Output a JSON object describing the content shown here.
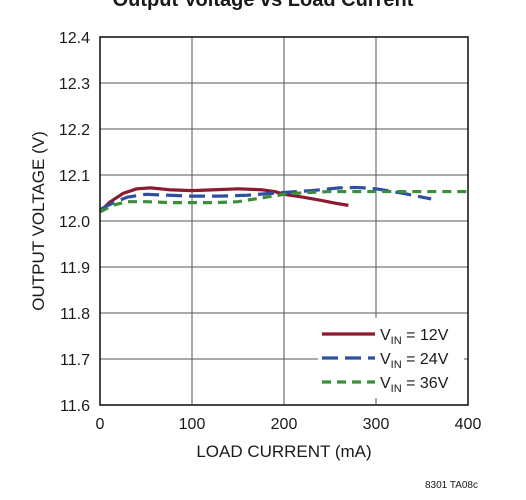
{
  "chart_data": {
    "type": "line",
    "title": "Output Voltage vs Load Current",
    "xlabel": "LOAD CURRENT (mA)",
    "ylabel": "OUTPUT VOLTAGE (V)",
    "xlim": [
      0,
      400
    ],
    "ylim": [
      11.6,
      12.4
    ],
    "x_ticks": [
      "0",
      "100",
      "200",
      "300",
      "400"
    ],
    "y_ticks": [
      "11.6",
      "11.7",
      "11.8",
      "11.9",
      "12.0",
      "12.1",
      "12.2",
      "12.3",
      "12.4"
    ],
    "grid": true,
    "legend_position": "bottom-right",
    "series": [
      {
        "name_main": "V",
        "name_sub": "IN",
        "name_rest": " = 12V",
        "color": "#8b1a2e",
        "style": "solid",
        "x": [
          0,
          10,
          25,
          40,
          55,
          75,
          100,
          125,
          150,
          175,
          190,
          200,
          220,
          240,
          255,
          270
        ],
        "y": [
          12.02,
          12.04,
          12.06,
          12.07,
          12.072,
          12.068,
          12.066,
          12.068,
          12.07,
          12.068,
          12.064,
          12.058,
          12.052,
          12.045,
          12.039,
          12.034
        ]
      },
      {
        "name_main": "V",
        "name_sub": "IN",
        "name_rest": " = 24V",
        "color": "#2f4fa0",
        "style": "dashed",
        "x": [
          0,
          15,
          30,
          50,
          75,
          100,
          130,
          160,
          185,
          200,
          230,
          260,
          280,
          300,
          330,
          360
        ],
        "y": [
          12.025,
          12.04,
          12.052,
          12.058,
          12.056,
          12.054,
          12.054,
          12.056,
          12.06,
          12.062,
          12.066,
          12.072,
          12.073,
          12.07,
          12.06,
          12.048
        ]
      },
      {
        "name_main": "V",
        "name_sub": "IN",
        "name_rest": " = 36V",
        "color": "#3a8f3a",
        "style": "dotted-dash",
        "x": [
          0,
          15,
          30,
          50,
          75,
          100,
          125,
          150,
          175,
          200,
          225,
          250,
          275,
          300,
          325,
          350,
          375,
          400
        ],
        "y": [
          12.02,
          12.035,
          12.042,
          12.042,
          12.04,
          12.04,
          12.04,
          12.042,
          12.05,
          12.058,
          12.062,
          12.064,
          12.064,
          12.064,
          12.064,
          12.064,
          12.064,
          12.064
        ]
      }
    ],
    "figure_id": "8301 TA08c"
  }
}
